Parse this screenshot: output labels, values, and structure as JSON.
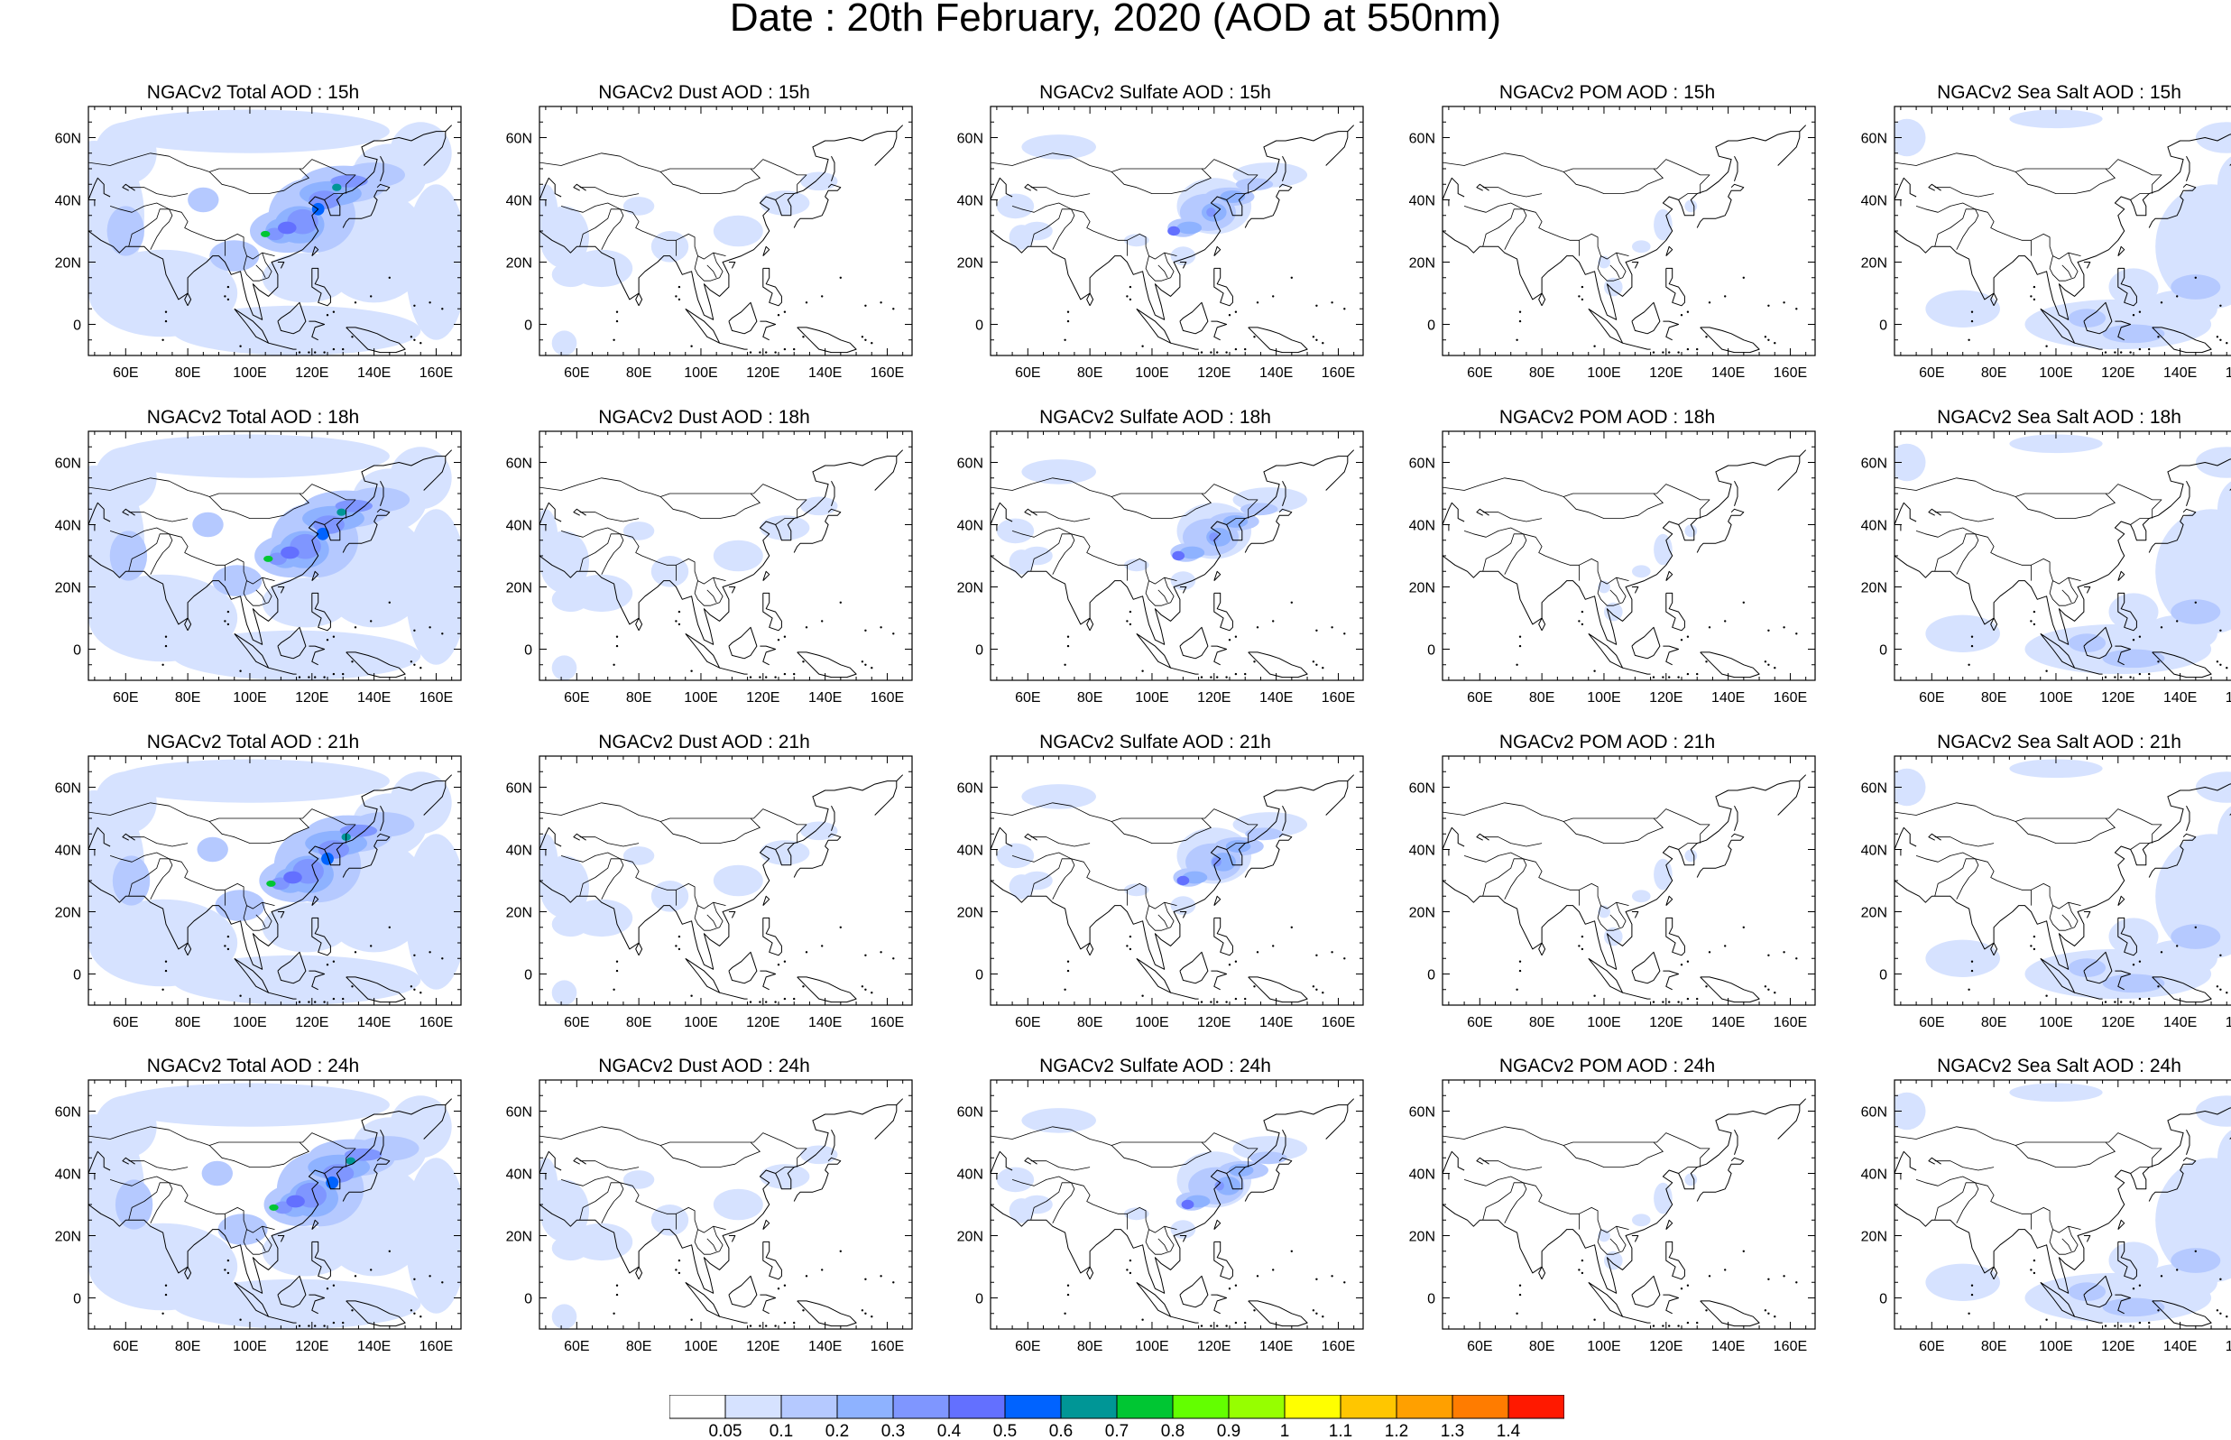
{
  "title": "Date : 20th February, 2020 (AOD at 550nm)",
  "lon_ticks": [
    "60E",
    "80E",
    "100E",
    "120E",
    "140E",
    "160E"
  ],
  "lat_ticks": [
    "60N",
    "40N",
    "20N",
    "0"
  ],
  "lon_range": [
    48,
    168
  ],
  "lat_range": [
    -10,
    70
  ],
  "rows": [
    {
      "hour": "15h",
      "panels": [
        {
          "species": "total",
          "title": "NGACv2 Total AOD : 15h"
        },
        {
          "species": "dust",
          "title": "NGACv2 Dust AOD : 15h"
        },
        {
          "species": "sulfate",
          "title": "NGACv2 Sulfate AOD : 15h"
        },
        {
          "species": "pom",
          "title": "NGACv2 POM AOD : 15h"
        },
        {
          "species": "seasalt",
          "title": "NGACv2 Sea Salt AOD : 15h"
        }
      ]
    },
    {
      "hour": "18h",
      "panels": [
        {
          "species": "total",
          "title": "NGACv2 Total AOD : 18h"
        },
        {
          "species": "dust",
          "title": "NGACv2 Dust AOD : 18h"
        },
        {
          "species": "sulfate",
          "title": "NGACv2 Sulfate AOD : 18h"
        },
        {
          "species": "pom",
          "title": "NGACv2 POM AOD : 18h"
        },
        {
          "species": "seasalt",
          "title": "NGACv2 Sea Salt AOD : 18h"
        }
      ]
    },
    {
      "hour": "21h",
      "panels": [
        {
          "species": "total",
          "title": "NGACv2 Total AOD : 21h"
        },
        {
          "species": "dust",
          "title": "NGACv2 Dust AOD : 21h"
        },
        {
          "species": "sulfate",
          "title": "NGACv2 Sulfate AOD : 21h"
        },
        {
          "species": "pom",
          "title": "NGACv2 POM AOD : 21h"
        },
        {
          "species": "seasalt",
          "title": "NGACv2 Sea Salt AOD : 21h"
        }
      ]
    },
    {
      "hour": "24h",
      "panels": [
        {
          "species": "total",
          "title": "NGACv2 Total AOD : 24h"
        },
        {
          "species": "dust",
          "title": "NGACv2 Dust AOD : 24h"
        },
        {
          "species": "sulfate",
          "title": "NGACv2 Sulfate AOD : 24h"
        },
        {
          "species": "pom",
          "title": "NGACv2 POM AOD : 24h"
        },
        {
          "species": "seasalt",
          "title": "NGACv2 Sea Salt  AOD : 24h"
        }
      ]
    }
  ],
  "colorbar": {
    "labels": [
      "0.05",
      "0.1",
      "0.2",
      "0.3",
      "0.4",
      "0.5",
      "0.6",
      "0.7",
      "0.8",
      "0.9",
      "1",
      "1.1",
      "1.2",
      "1.3",
      "1.4"
    ],
    "colors": [
      "#ffffff",
      "#d6e2ff",
      "#b5c9ff",
      "#8eb2ff",
      "#7f96ff",
      "#6370ff",
      "#0063ff",
      "#009696",
      "#00c633",
      "#63ff00",
      "#96ff00",
      "#ffff00",
      "#ffc600",
      "#ffa000",
      "#ff7c00",
      "#ff1900"
    ]
  }
}
